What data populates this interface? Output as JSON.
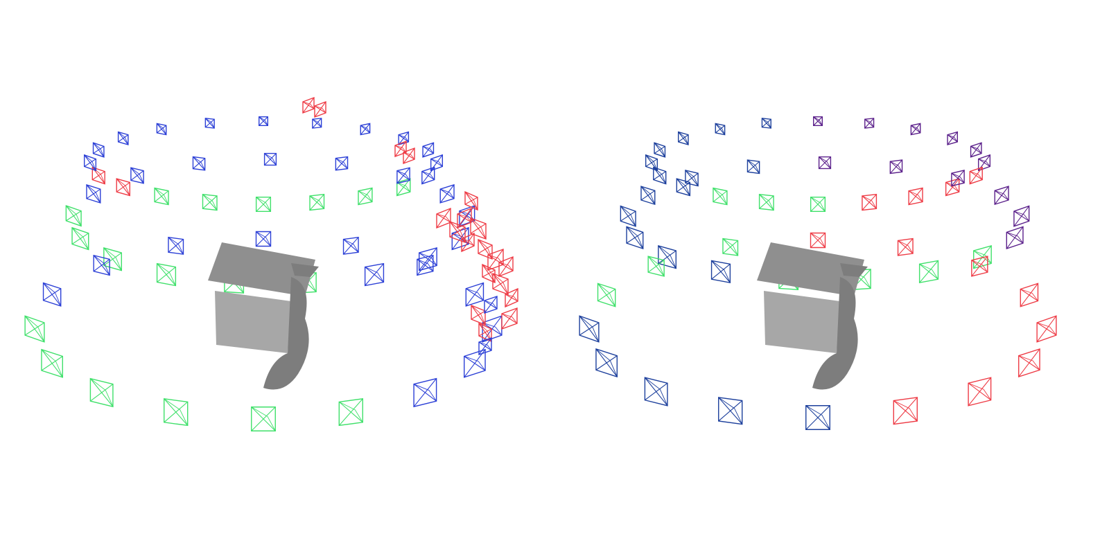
{
  "colors": {
    "background": "#ffffff",
    "blue": "#2b3fd6",
    "green": "#3fe06a",
    "red": "#ee3b45",
    "purple": "#5a1f8a",
    "navy": "#1c3f9c",
    "house_roof": "#8f8f8f",
    "house_wall": "#a7a7a7",
    "house_shadow": "#7d7d7d"
  },
  "panels": [
    {
      "id": "left",
      "rings": [
        {
          "n": 20,
          "segments": [
            {
              "to": 0.3,
              "color": "blue"
            },
            {
              "to": 0.6,
              "color": "green"
            },
            {
              "to": 0.7,
              "color": "red"
            },
            {
              "to": 1.0,
              "color": "blue"
            }
          ]
        },
        {
          "n": 17,
          "segments": [
            {
              "to": 0.45,
              "color": "blue"
            },
            {
              "to": 0.8,
              "color": "green"
            },
            {
              "to": 1.0,
              "color": "blue"
            }
          ]
        },
        {
          "n": 16,
          "segments": [
            {
              "to": 0.4,
              "color": "blue"
            },
            {
              "to": 0.75,
              "color": "green"
            },
            {
              "to": 1.0,
              "color": "blue"
            }
          ]
        }
      ],
      "outlier_clusters": [
        "red-top",
        "red-right"
      ]
    },
    {
      "id": "right",
      "rings": [
        {
          "n": 20,
          "segments": [
            {
              "to": 0.25,
              "color": "purple"
            },
            {
              "to": 0.45,
              "color": "red"
            },
            {
              "to": 0.6,
              "color": "green"
            },
            {
              "to": 1.0,
              "color": "navy"
            }
          ]
        },
        {
          "n": 17,
          "segments": [
            {
              "to": 0.35,
              "color": "purple"
            },
            {
              "to": 0.55,
              "color": "green"
            },
            {
              "to": 1.0,
              "color": "navy"
            }
          ]
        },
        {
          "n": 16,
          "segments": [
            {
              "to": 0.45,
              "color": "red"
            },
            {
              "to": 0.75,
              "color": "navy"
            },
            {
              "to": 1.0,
              "color": "green"
            }
          ]
        }
      ],
      "outlier_clusters": []
    }
  ],
  "icons": {
    "camera": "camera-frustum-icon",
    "object": "house-model"
  }
}
